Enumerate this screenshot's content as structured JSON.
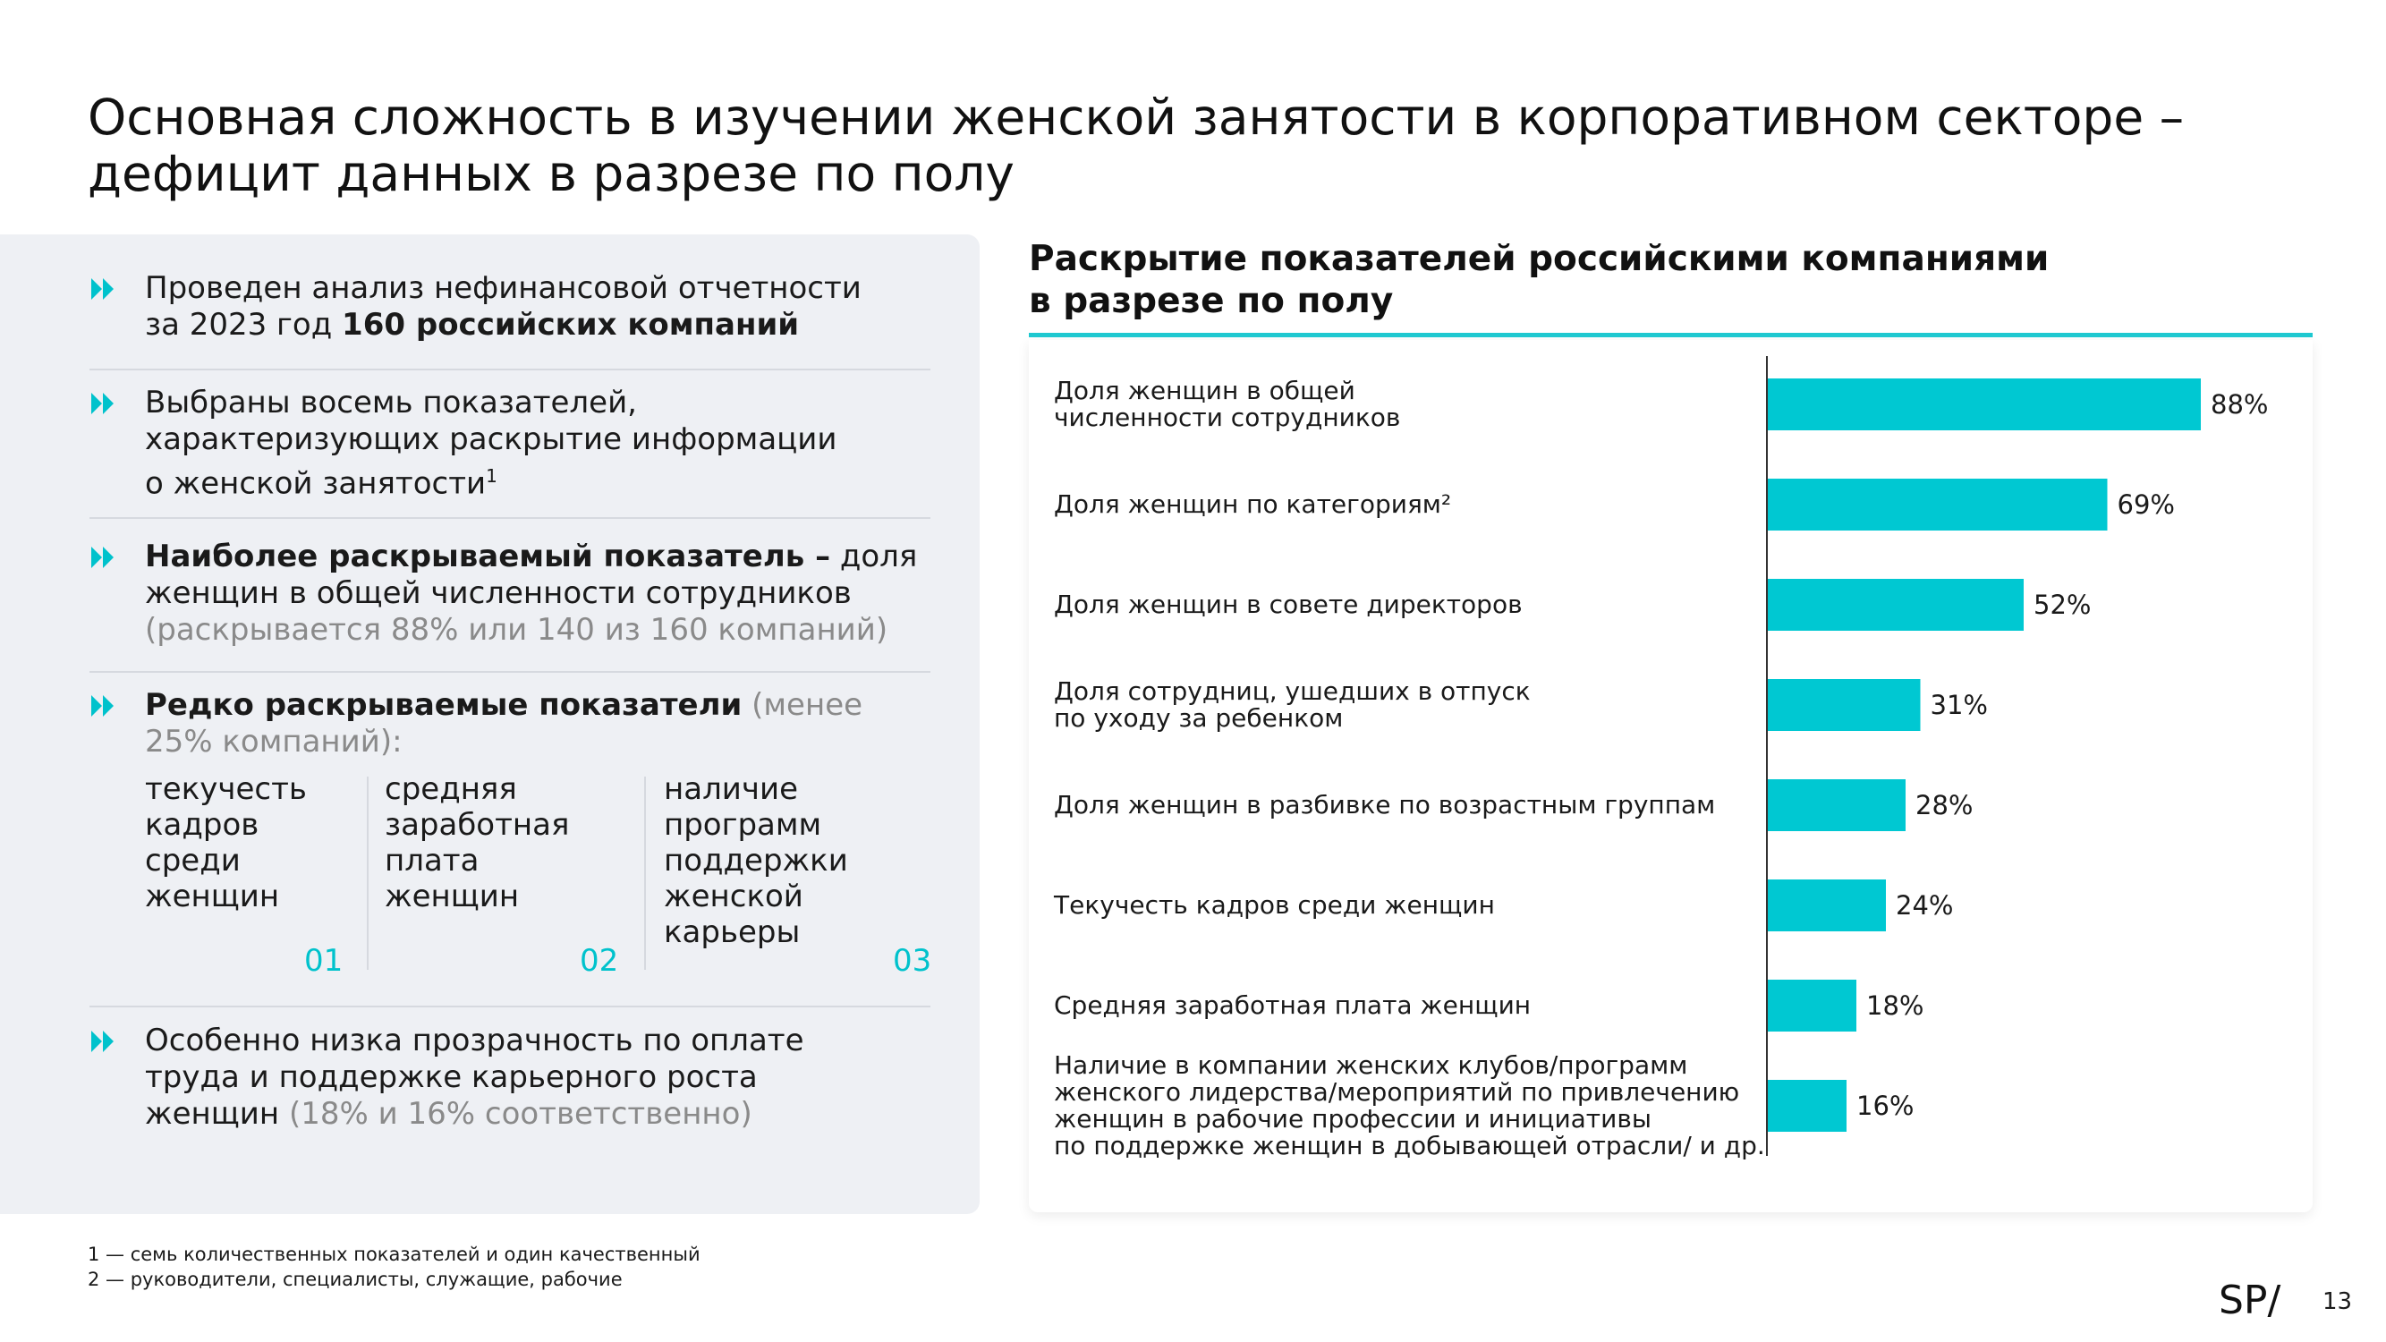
{
  "title": {
    "line1": "Основная сложность в изучении женской занятости в корпоративном секторе –",
    "line2": "дефицит данных в разрезе по полу"
  },
  "left": {
    "item1": {
      "line1": "Проведен анализ нефинансовой отчетности",
      "line2_prefix": "за 2023 год ",
      "line2_bold": "160 российских компаний"
    },
    "item2": {
      "line1": "Выбраны восемь показателей,",
      "line2": "характеризующих раскрытие информации",
      "line3": "о женской занятости",
      "sup": "1"
    },
    "item3": {
      "bold": "Наиболее раскрываемый показатель –",
      "rest1": " доля",
      "line2": "женщин в общей численности сотрудников",
      "grey": "(раскрывается 88% или 140 из 160 компаний)"
    },
    "item4": {
      "bold": "Редко раскрываемые показатели",
      "grey1": " (менее",
      "grey2": "25% компаний):"
    },
    "columns": [
      {
        "lines": [
          "текучесть",
          "кадров",
          "среди",
          "женщин"
        ],
        "num": "01"
      },
      {
        "lines": [
          "средняя",
          "заработная",
          "плата",
          "женщин"
        ],
        "num": "02"
      },
      {
        "lines": [
          "наличие",
          "программ",
          "поддержки",
          "женской",
          "карьеры"
        ],
        "num": "03"
      }
    ],
    "item5": {
      "line1": "Особенно низка прозрачность по оплате",
      "line2": "труда и поддержке карьерного роста",
      "line3": "женщин",
      "grey": " (18% и 16% соответственно)"
    }
  },
  "chart_data": {
    "type": "bar",
    "orientation": "horizontal",
    "title": "Раскрытие показателей российскими компаниями в разрезе по полу",
    "title_line1": "Раскрытие показателей российскими компаниями",
    "title_line2": "в разрезе по полу",
    "xlim": [
      0,
      100
    ],
    "bar_color": "#00c8d2",
    "categories": [
      [
        "Доля женщин в общей",
        "численности сотрудников"
      ],
      [
        "Доля женщин по категориям²"
      ],
      [
        "Доля женщин в совете директоров"
      ],
      [
        "Доля сотрудниц, ушедших в отпуск",
        "по уходу за ребенком"
      ],
      [
        "Доля женщин в разбивке по возрастным группам"
      ],
      [
        "Текучесть кадров среди женщин"
      ],
      [
        "Средняя заработная плата женщин"
      ],
      [
        "Наличие в компании женских клубов/программ",
        "женского лидерства/мероприятий по привлечению",
        "женщин в рабочие профессии и инициативы",
        "по поддержке женщин в добывающей отрасли/ и др."
      ]
    ],
    "values": [
      88,
      69,
      52,
      31,
      28,
      24,
      18,
      16
    ],
    "value_labels": [
      "88%",
      "69%",
      "52%",
      "31%",
      "28%",
      "24%",
      "18%",
      "16%"
    ]
  },
  "footnotes": {
    "f1": "1 — семь количественных показателей и один качественный",
    "f2": "2 — руководители, специалисты, служащие, рабочие"
  },
  "logo_text": "SP/",
  "page_number": "13",
  "colors": {
    "accent": "#00c8d2",
    "panel": "#eef0f4",
    "grey_text": "#8a8a8a"
  }
}
